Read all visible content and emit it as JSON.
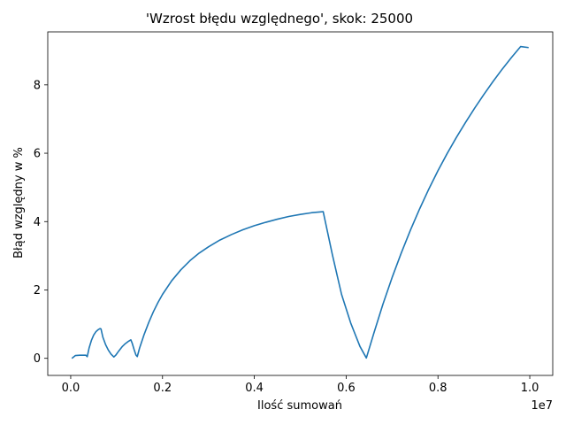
{
  "chart_data": {
    "type": "line",
    "title": "'Wzrost błędu względnego', skok: 25000",
    "xlabel": "Ilość sumowań",
    "ylabel": "Błąd względny w %",
    "x_offset_label": "1e7",
    "xlim": [
      -500000,
      10500000
    ],
    "ylim": [
      -0.5,
      9.55
    ],
    "x_ticks": [
      0,
      2000000,
      4000000,
      6000000,
      8000000,
      10000000
    ],
    "x_tick_labels": [
      "0.0",
      "0.2",
      "0.4",
      "0.6",
      "0.8",
      "1.0"
    ],
    "y_ticks": [
      0,
      2,
      4,
      6,
      8
    ],
    "y_tick_labels": [
      "0",
      "2",
      "4",
      "6",
      "8"
    ],
    "grid": false,
    "series": [
      {
        "color": "#1f77b4",
        "x": [
          25000,
          100000,
          200000,
          300000,
          330000,
          360000,
          400000,
          450000,
          500000,
          550000,
          600000,
          640000,
          660000,
          700000,
          760000,
          820000,
          880000,
          940000,
          980000,
          1050000,
          1120000,
          1190000,
          1260000,
          1310000,
          1340000,
          1380000,
          1420000,
          1450000,
          1500000,
          1600000,
          1700000,
          1800000,
          1900000,
          2000000,
          2200000,
          2400000,
          2600000,
          2800000,
          3000000,
          3250000,
          3500000,
          3750000,
          4000000,
          4250000,
          4500000,
          4750000,
          5000000,
          5250000,
          5500000,
          5700000,
          5900000,
          6100000,
          6300000,
          6440000,
          6600000,
          6800000,
          7000000,
          7200000,
          7400000,
          7600000,
          7800000,
          8000000,
          8200000,
          8400000,
          8600000,
          8800000,
          9000000,
          9200000,
          9400000,
          9600000,
          9800000,
          9975000
        ],
        "y": [
          0.0,
          0.08,
          0.09,
          0.09,
          0.09,
          0.05,
          0.3,
          0.52,
          0.68,
          0.78,
          0.84,
          0.87,
          0.86,
          0.62,
          0.4,
          0.24,
          0.12,
          0.04,
          0.09,
          0.22,
          0.34,
          0.43,
          0.5,
          0.54,
          0.44,
          0.26,
          0.1,
          0.05,
          0.3,
          0.7,
          1.05,
          1.36,
          1.63,
          1.87,
          2.27,
          2.59,
          2.86,
          3.08,
          3.26,
          3.46,
          3.62,
          3.76,
          3.88,
          3.98,
          4.07,
          4.15,
          4.21,
          4.26,
          4.29,
          3.03,
          1.87,
          1.03,
          0.35,
          0.01,
          0.72,
          1.58,
          2.36,
          3.08,
          3.75,
          4.37,
          4.95,
          5.49,
          5.99,
          6.46,
          6.9,
          7.32,
          7.72,
          8.1,
          8.46,
          8.8,
          9.12,
          9.09
        ]
      }
    ]
  }
}
